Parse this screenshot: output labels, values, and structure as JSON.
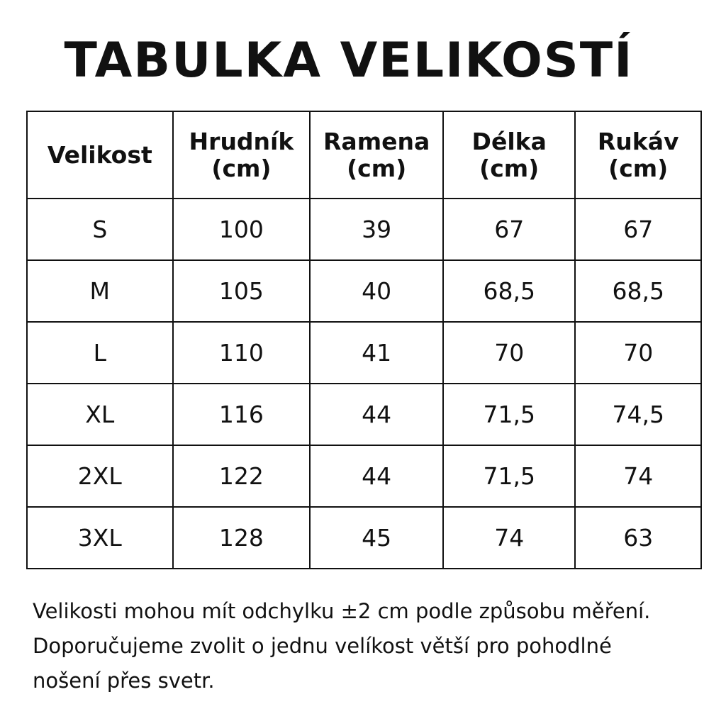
{
  "title": "TABULKA VELIKOSTÍ",
  "table": {
    "headers": [
      {
        "name": "Velikost",
        "unit": ""
      },
      {
        "name": "Hrudník",
        "unit": "(cm)"
      },
      {
        "name": "Ramena",
        "unit": "(cm)"
      },
      {
        "name": "Délka",
        "unit": "(cm)"
      },
      {
        "name": "Rukáv",
        "unit": "(cm)"
      }
    ],
    "rows": [
      [
        "S",
        "100",
        "39",
        "67",
        "67"
      ],
      [
        "M",
        "105",
        "40",
        "68,5",
        "68,5"
      ],
      [
        "L",
        "110",
        "41",
        "70",
        "70"
      ],
      [
        "XL",
        "116",
        "44",
        "71,5",
        "74,5"
      ],
      [
        "2XL",
        "122",
        "44",
        "71,5",
        "74"
      ],
      [
        "3XL",
        "128",
        "45",
        "74",
        "63"
      ]
    ]
  },
  "note": "Velikosti mohou mít odchylku ±2 cm podle způsobu měření. Doporučujeme zvolit o jednu velíkost větší pro pohodlné nošení přes svetr."
}
